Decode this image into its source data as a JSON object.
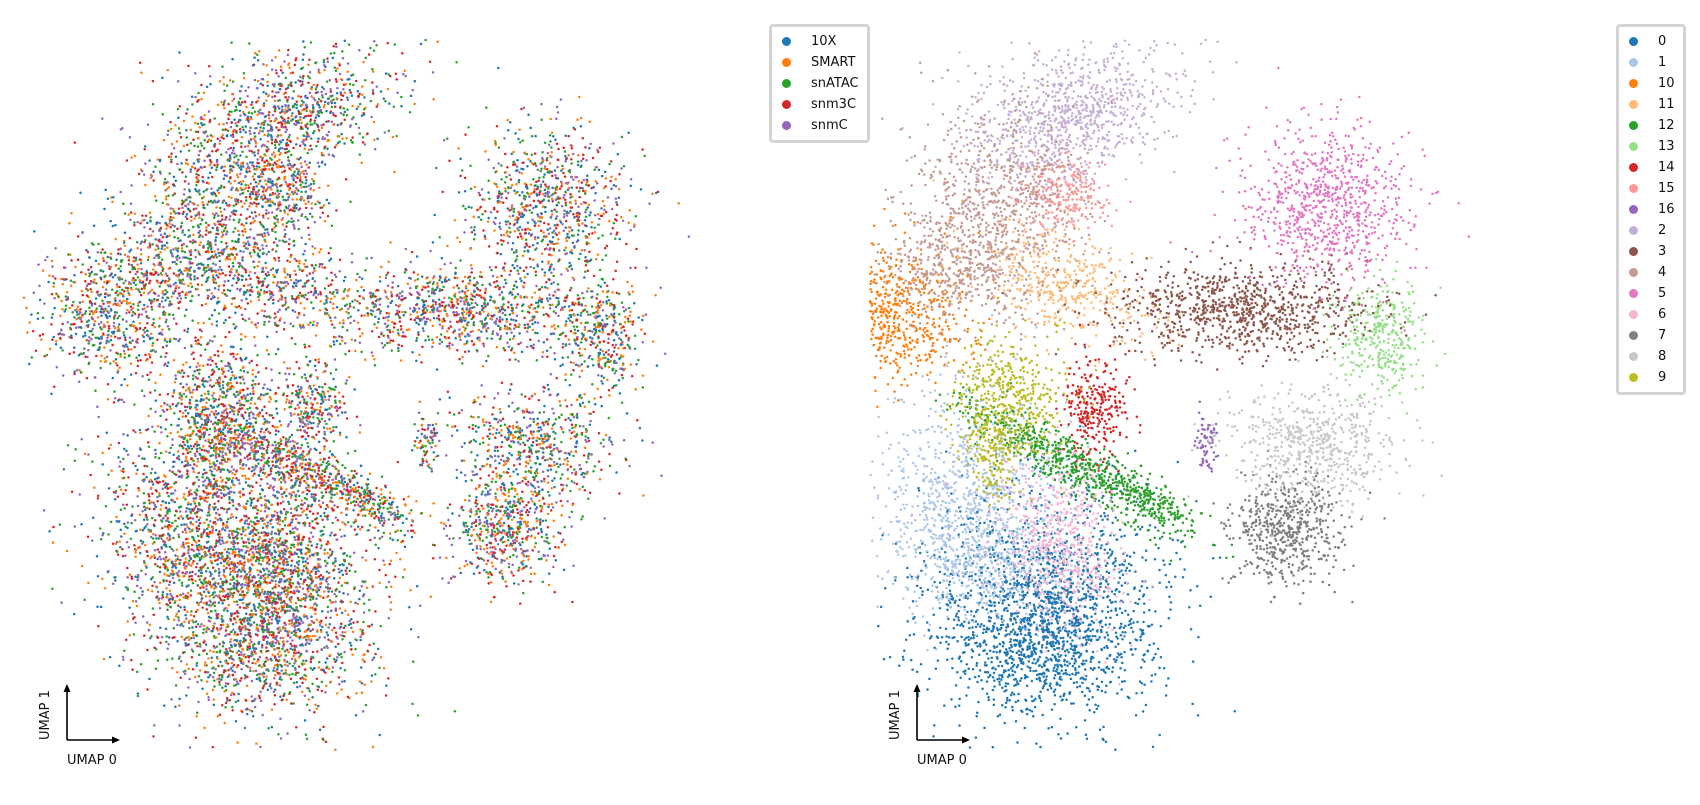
{
  "chart_data": [
    {
      "type": "scatter",
      "title": "",
      "xlabel": "UMAP 0",
      "ylabel": "UMAP 1",
      "grid": false,
      "legend_placement": "outside-top-right",
      "series": [
        {
          "name": "10X",
          "color": "#1f77b4"
        },
        {
          "name": "SMART",
          "color": "#ff7f0e"
        },
        {
          "name": "snATAC",
          "color": "#2ca02c"
        },
        {
          "name": "snm3C",
          "color": "#d62728"
        },
        {
          "name": "snmC",
          "color": "#9467bd"
        }
      ]
    },
    {
      "type": "scatter",
      "title": "",
      "xlabel": "UMAP 0",
      "ylabel": "UMAP 1",
      "grid": false,
      "legend_placement": "outside-top-right",
      "series": [
        {
          "name": "0",
          "color": "#1f77b4"
        },
        {
          "name": "1",
          "color": "#aec7e8"
        },
        {
          "name": "10",
          "color": "#ff7f0e"
        },
        {
          "name": "11",
          "color": "#ffbb78"
        },
        {
          "name": "12",
          "color": "#2ca02c"
        },
        {
          "name": "13",
          "color": "#98df8a"
        },
        {
          "name": "14",
          "color": "#d62728"
        },
        {
          "name": "15",
          "color": "#ff9896"
        },
        {
          "name": "16",
          "color": "#9467bd"
        },
        {
          "name": "2",
          "color": "#c5b0d5"
        },
        {
          "name": "3",
          "color": "#8c564b"
        },
        {
          "name": "4",
          "color": "#c49c94"
        },
        {
          "name": "5",
          "color": "#e377c2"
        },
        {
          "name": "6",
          "color": "#f7b6d2"
        },
        {
          "name": "7",
          "color": "#7f7f7f"
        },
        {
          "name": "8",
          "color": "#c7c7c7"
        },
        {
          "name": "9",
          "color": "#bcbd22"
        }
      ]
    }
  ]
}
